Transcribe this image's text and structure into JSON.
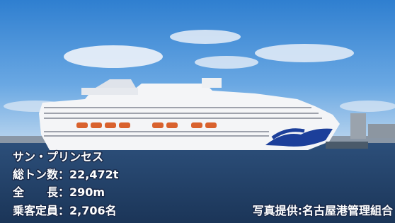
{
  "caption": [
    "サン・プリンセス",
    "総トン数：22,472t",
    "全　　長：290m",
    "乗客定員：2,706名"
  ],
  "credit": "写真提供:名古屋港管理組合"
}
